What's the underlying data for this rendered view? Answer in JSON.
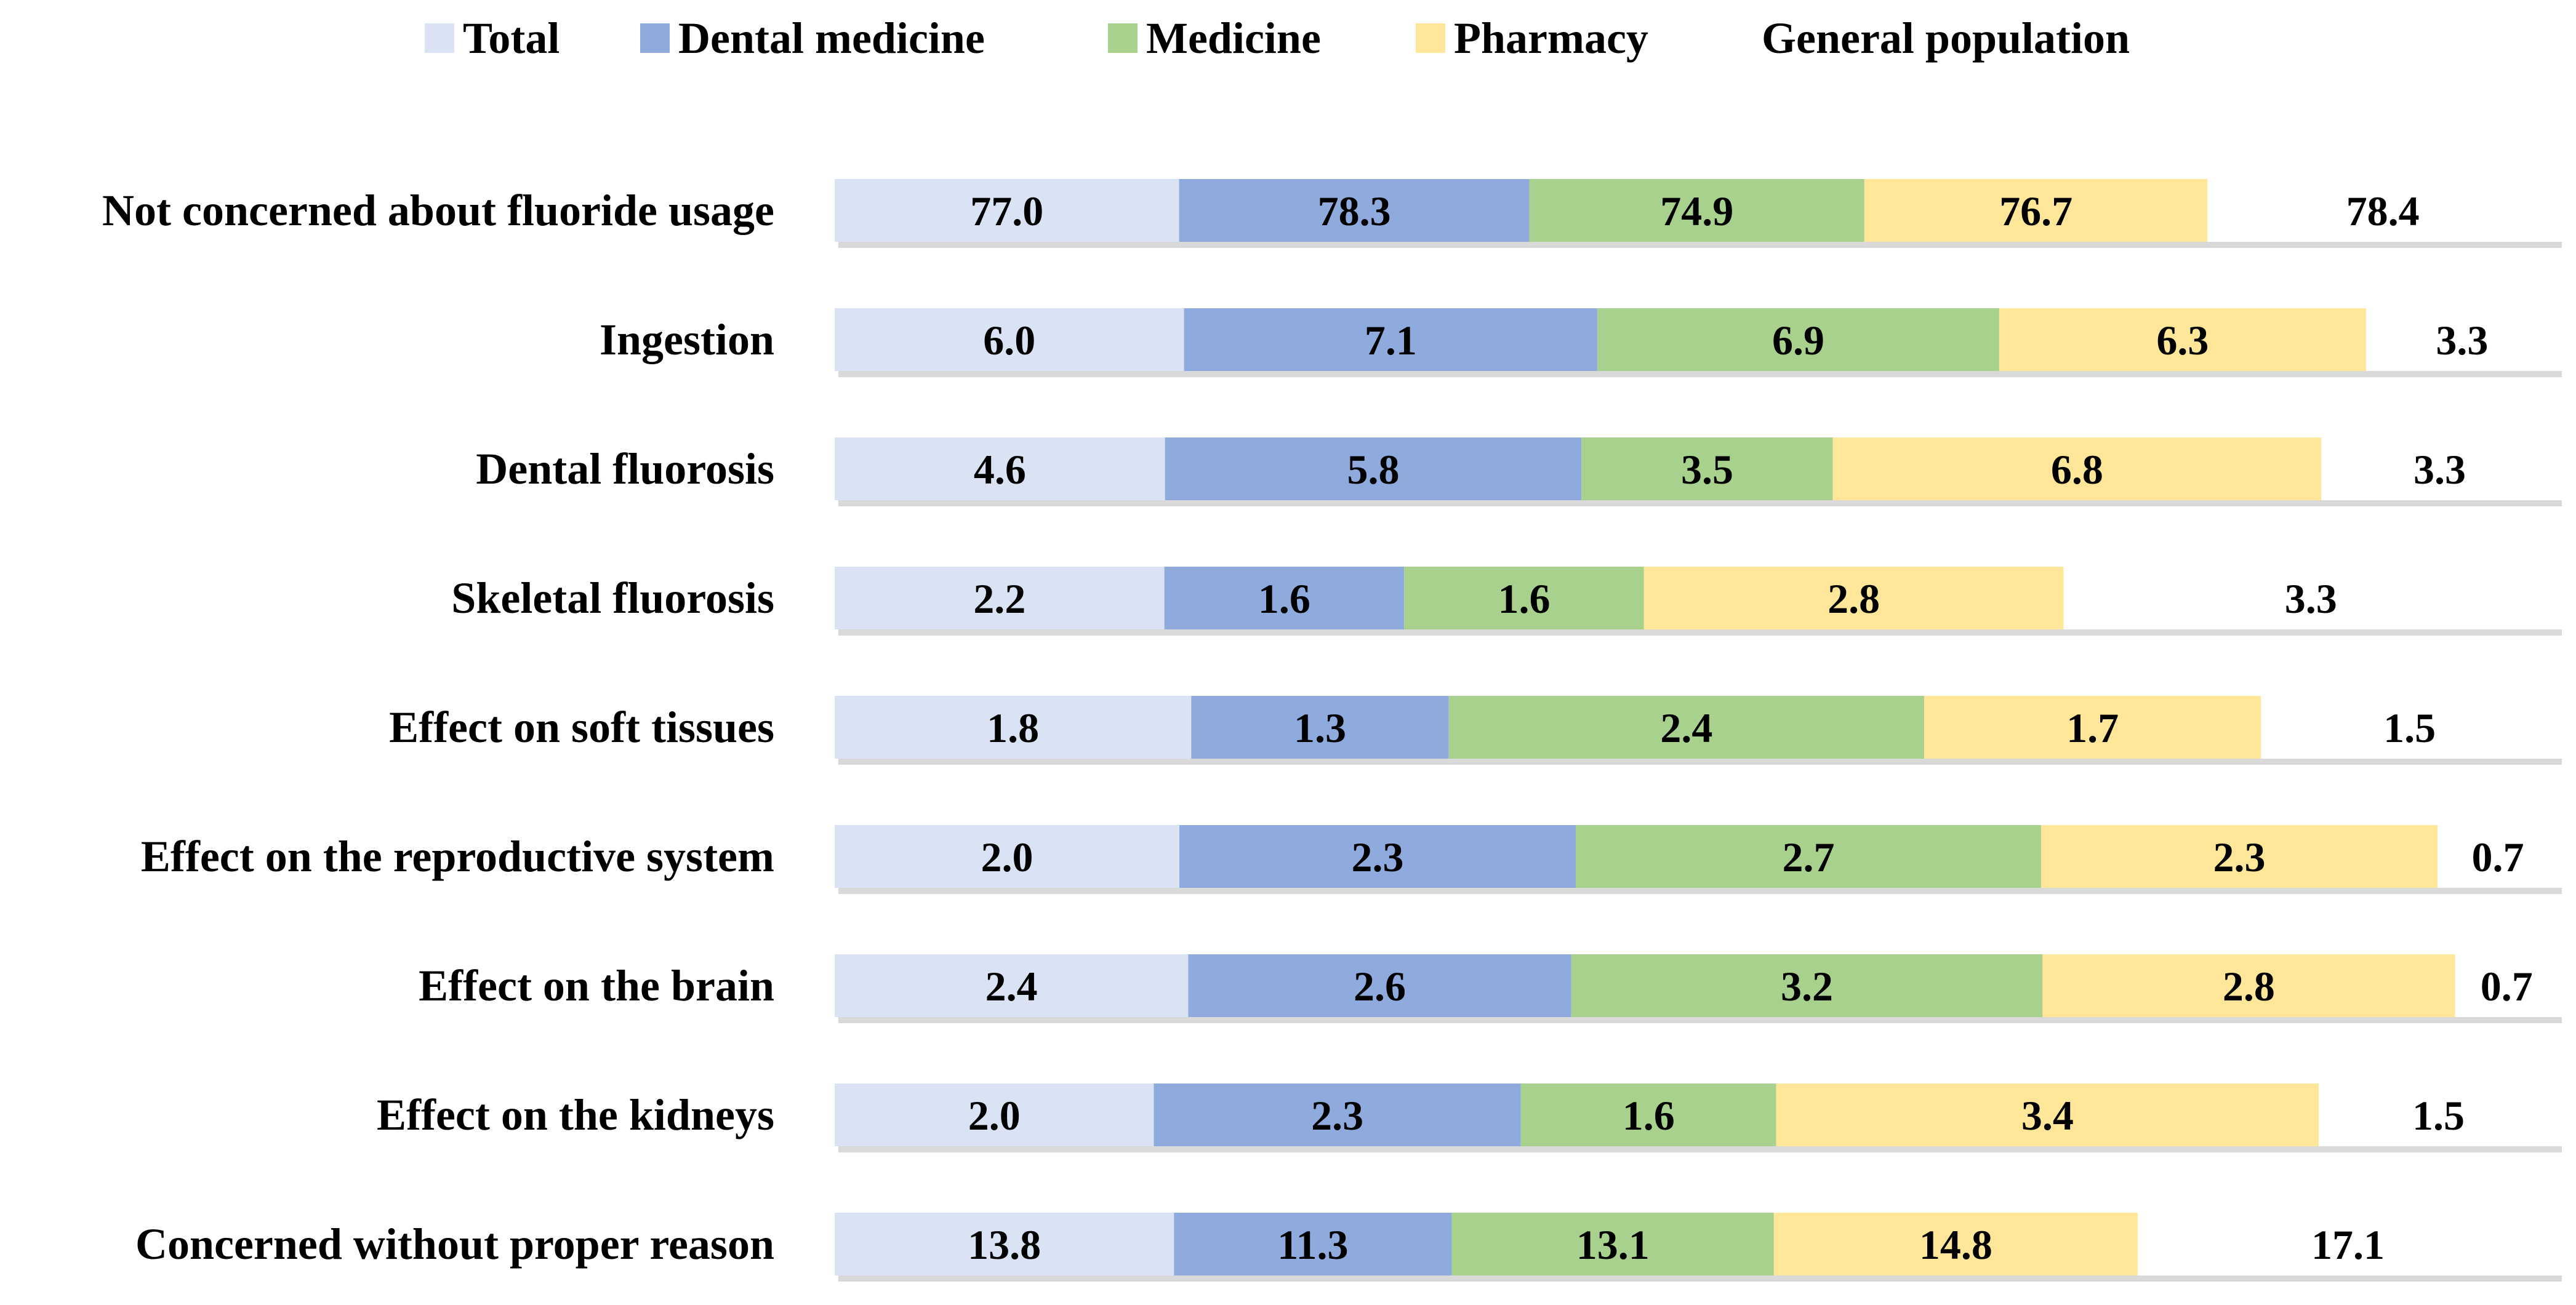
{
  "chart_data": {
    "type": "bar",
    "orientation": "horizontal",
    "stacked": true,
    "normalized_rows": true,
    "title": "",
    "xlabel": "",
    "ylabel": "",
    "legend_position": "top",
    "grid": false,
    "categories": [
      "Not concerned about fluoride usage",
      "Ingestion",
      "Dental fluorosis",
      "Skeletal fluorosis",
      "Effect on soft tissues",
      "Effect on the reproductive system",
      "Effect on the brain",
      "Effect on the kidneys",
      "Concerned without proper reason"
    ],
    "series": [
      {
        "name": "Total",
        "color": "#dae3f3",
        "values": [
          77.0,
          6.0,
          4.6,
          2.2,
          1.8,
          2.0,
          2.4,
          2.0,
          13.8
        ],
        "labels": [
          "77.0",
          "6.0",
          "4.6",
          "2.2",
          "1.8",
          "2.0",
          "2.4",
          "2.0",
          "13.8"
        ]
      },
      {
        "name": "Dental medicine",
        "color": "#8faadc",
        "values": [
          78.3,
          7.1,
          5.8,
          1.6,
          1.3,
          2.3,
          2.6,
          2.3,
          11.3
        ],
        "labels": [
          "78.3",
          "7.1",
          "5.8",
          "1.6",
          "1.3",
          "2.3",
          "2.6",
          "2.3",
          "11.3"
        ]
      },
      {
        "name": "Medicine",
        "color": "#a9d18e",
        "values": [
          74.9,
          6.9,
          3.5,
          1.6,
          2.4,
          2.7,
          3.2,
          1.6,
          13.1
        ],
        "labels": [
          "74.9",
          "6.9",
          "3.5",
          "1.6",
          "2.4",
          "2.7",
          "3.2",
          "1.6",
          "13.1"
        ]
      },
      {
        "name": "Pharmacy",
        "color": "#ffe699",
        "values": [
          76.7,
          6.3,
          6.8,
          2.8,
          1.7,
          2.3,
          2.8,
          3.4,
          14.8
        ],
        "labels": [
          "76.7",
          "6.3",
          "6.8",
          "2.8",
          "1.7",
          "2.3",
          "2.8",
          "3.4",
          "14.8"
        ]
      },
      {
        "name": "General population",
        "color": "#ffffff",
        "values": [
          78.4,
          3.3,
          3.3,
          3.3,
          1.5,
          0.7,
          0.7,
          1.5,
          17.1
        ],
        "labels": [
          "78.4",
          "3.3",
          "3.3",
          "3.3",
          "1.5",
          "0.7",
          "0.7",
          "1.5",
          "17.1"
        ]
      }
    ]
  }
}
